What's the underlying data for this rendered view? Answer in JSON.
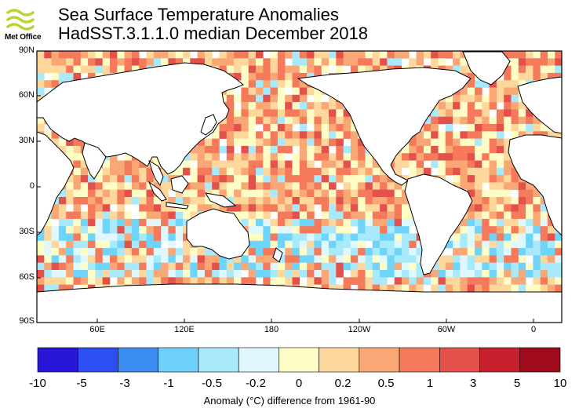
{
  "header": {
    "logo_text": "Met Office",
    "title_line1": "Sea Surface Temperature Anomalies",
    "title_line2": "HadSST.3.1.1.0 median December 2018"
  },
  "map": {
    "lat_labels": [
      "90N",
      "60N",
      "30N",
      "0",
      "30S",
      "60S",
      "90S"
    ],
    "lon_labels": [
      "60E",
      "120E",
      "180",
      "120W",
      "60W",
      "0"
    ],
    "center_longitude": 150,
    "ocean_fill_colors": [
      "#f57a5c",
      "#f9a775",
      "#fdd79b",
      "#fffdc6",
      "#e0f7fe",
      "#a8e9fc",
      "#6fd4fa",
      "#e4504a"
    ]
  },
  "colorbar": {
    "ticks": [
      "-10",
      "-5",
      "-3",
      "-1",
      "-0.5",
      "-0.2",
      "0",
      "0.2",
      "0.5",
      "1",
      "3",
      "5",
      "10"
    ],
    "colors": [
      "#2a16d6",
      "#2c4ef2",
      "#3a8cf0",
      "#6fd0fb",
      "#a8e9fc",
      "#e0f7fe",
      "#fffdc6",
      "#fdd79b",
      "#f9a775",
      "#f57a5c",
      "#e4504a",
      "#c7202f",
      "#a00c1c"
    ],
    "title": "Anomaly (°C) difference from 1961-90"
  }
}
